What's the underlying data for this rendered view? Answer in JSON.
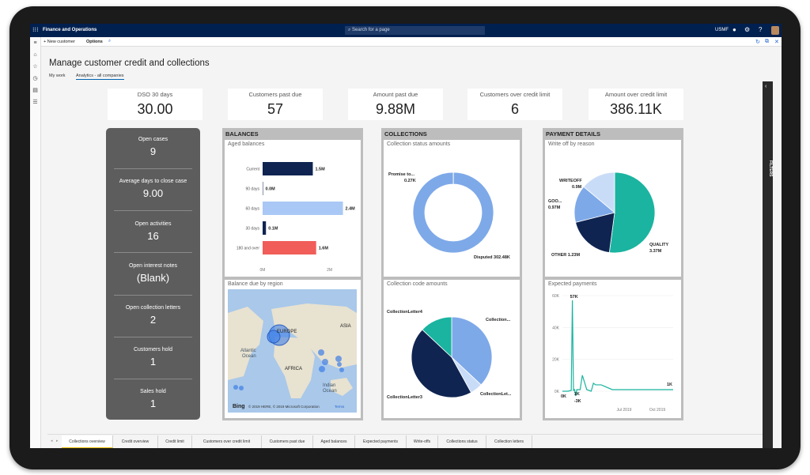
{
  "app": {
    "name": "Finance and Operations",
    "search_placeholder": "Search for a page",
    "company": "USMF"
  },
  "actions": {
    "new_customer": "New customer",
    "options": "Options"
  },
  "page": {
    "title": "Manage customer credit and collections",
    "tabs": [
      "My work",
      "Analytics - all companies"
    ]
  },
  "kpis": [
    {
      "label": "DSO 30 days",
      "value": "30.00"
    },
    {
      "label": "Customers past due",
      "value": "57"
    },
    {
      "label": "Amount past due",
      "value": "9.88M"
    },
    {
      "label": "Customers over credit limit",
      "value": "6"
    },
    {
      "label": "Amount over credit limit",
      "value": "386.11K"
    }
  ],
  "summary": [
    {
      "label": "Open cases",
      "value": "9"
    },
    {
      "label": "Average days to close case",
      "value": "9.00"
    },
    {
      "label": "Open activities",
      "value": "16"
    },
    {
      "label": "Open interest notes",
      "value": "(Blank)"
    },
    {
      "label": "Open collection letters",
      "value": "2"
    },
    {
      "label": "Customers hold",
      "value": "1"
    },
    {
      "label": "Sales hold",
      "value": "1"
    }
  ],
  "sections": {
    "balances": "BALANCES",
    "collections": "COLLECTIONS",
    "payment_details": "PAYMENT DETAILS"
  },
  "card_titles": {
    "aged": "Aged balances",
    "region": "Balance due by region",
    "status": "Collection status amounts",
    "code": "Collection code amounts",
    "writeoff": "Write off by reason",
    "expected": "Expected payments"
  },
  "map": {
    "labels": {
      "europe": "EUROPE",
      "asia": "ASIA",
      "atlantic": "Atlantic Ocean",
      "africa": "AFRICA",
      "indian": "Indian Ocean"
    },
    "attribution": "© 2019 HERE, © 2019 Microsoft Corporation",
    "terms": "Terms",
    "bing": "Bing"
  },
  "chart_data": [
    {
      "type": "bar",
      "title": "Aged balances",
      "orientation": "horizontal",
      "categories": [
        "Current",
        "90 days",
        "60 days",
        "30 days",
        "180 and over"
      ],
      "values": [
        1.5,
        0.0,
        2.4,
        0.1,
        1.6
      ],
      "data_labels": [
        "1.5M",
        "0.0M",
        "2.4M",
        "0.1M",
        "1.6M"
      ],
      "colors": [
        "#0f2451",
        "#0f2451",
        "#a9c8f5",
        "#0f2451",
        "#f15d59"
      ],
      "xticks": [
        "0M",
        "2M"
      ],
      "xlim": [
        0,
        2.6
      ]
    },
    {
      "type": "pie",
      "title": "Collection status amounts",
      "donut": true,
      "slices": [
        {
          "label": "Promise to...",
          "value_label": "0.27K",
          "value": 0.27,
          "color": "#0f2451"
        },
        {
          "label": "Disputed",
          "value_label": "302.48K",
          "value": 302.48,
          "color": "#7ea9e8"
        }
      ]
    },
    {
      "type": "pie",
      "title": "Collection code amounts",
      "slices": [
        {
          "label": "Collection...",
          "value": 0.37,
          "color": "#7ea9e8"
        },
        {
          "label": "CollectionLet...",
          "value": 0.05,
          "color": "#c9dcf7"
        },
        {
          "label": "CollectionLetter3",
          "value": 0.45,
          "color": "#0f2451"
        },
        {
          "label": "CollectionLetter4",
          "value": 0.13,
          "color": "#1ab4a0"
        }
      ]
    },
    {
      "type": "pie",
      "title": "Write off by reason",
      "slices": [
        {
          "label": "QUALITY",
          "value_label": "3.37M",
          "value": 3.37,
          "color": "#1ab4a0"
        },
        {
          "label": "OTHER",
          "value_label": "1.23M",
          "value": 1.23,
          "color": "#0f2451"
        },
        {
          "label": "GOO...",
          "value_label": "0.97M",
          "value": 0.97,
          "color": "#7ea9e8"
        },
        {
          "label": "WRITEOFF",
          "value_label": "0.9M",
          "value": 0.9,
          "color": "#c9dcf7"
        }
      ]
    },
    {
      "type": "line",
      "title": "Expected payments",
      "yticks": [
        "0K",
        "20K",
        "40K",
        "60K"
      ],
      "ylim": [
        0,
        60
      ],
      "xticks": [
        "Jul 2019",
        "Oct 2019"
      ],
      "xlim": [
        0,
        100
      ],
      "x": [
        0,
        5,
        8,
        9,
        10,
        11,
        12,
        13,
        16,
        18,
        22,
        26,
        28,
        30,
        35,
        45,
        60,
        75,
        100
      ],
      "y": [
        0,
        0,
        0.5,
        57,
        0.5,
        1,
        -3,
        1,
        1,
        10,
        1,
        0,
        5,
        4,
        4,
        1,
        1,
        1,
        1
      ],
      "annotations": [
        "0K",
        "57K",
        "1K",
        "-3K",
        "1K"
      ],
      "color": "#1ab4a0"
    }
  ],
  "filters_label": "FILTERS",
  "bottom_tabs": [
    "Collections overview",
    "Credit overview",
    "Credit limit",
    "Customers over credit limit",
    "Customers past due",
    "Aged balances",
    "Expected payments",
    "Write-offs",
    "Collections status",
    "Collection letters"
  ],
  "icons": [
    "waffle-icon",
    "search-icon",
    "bell-icon",
    "gear-icon",
    "help-icon",
    "hamburger-icon",
    "home-icon",
    "star-icon",
    "clock-icon",
    "workspace-icon",
    "list-icon",
    "refresh-icon",
    "popout-icon",
    "close-icon"
  ]
}
